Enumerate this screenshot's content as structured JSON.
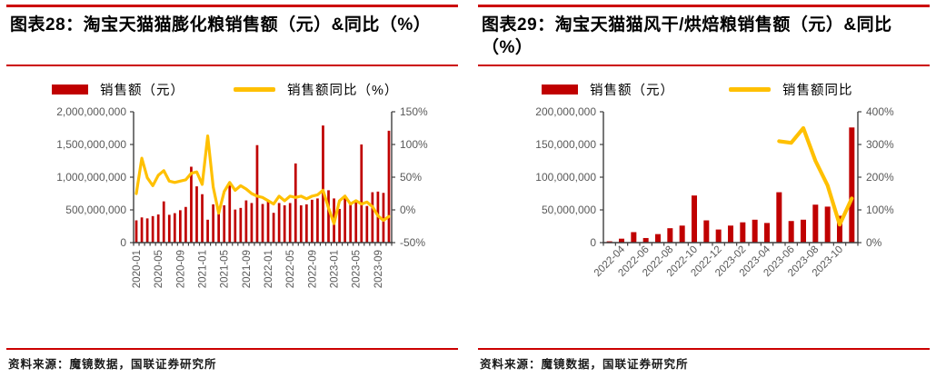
{
  "colors": {
    "bar": "#C00000",
    "line": "#FFC000",
    "rule": "#CC0000",
    "axis": "#3F3F3F",
    "tick_label": "#595959",
    "title": "#000000",
    "source_text": "#1A1A1A"
  },
  "chart_data": [
    {
      "type": "bar+line",
      "title": "图表28：淘宝天猫猫膨化粮销售额（元）&同比（%）",
      "source": "资料来源：魔镜数据，国联证券研究所",
      "legend": [
        {
          "label": "销售额（元）",
          "marker": "bar"
        },
        {
          "label": "销售额同比（%）",
          "marker": "line"
        }
      ],
      "categories": [
        "2020-01",
        "2020-02",
        "2020-03",
        "2020-04",
        "2020-05",
        "2020-06",
        "2020-07",
        "2020-08",
        "2020-09",
        "2020-10",
        "2020-11",
        "2020-12",
        "2021-01",
        "2021-02",
        "2021-03",
        "2021-04",
        "2021-05",
        "2021-06",
        "2021-07",
        "2021-08",
        "2021-09",
        "2021-10",
        "2021-11",
        "2021-12",
        "2022-01",
        "2022-02",
        "2022-03",
        "2022-04",
        "2022-05",
        "2022-06",
        "2022-07",
        "2022-08",
        "2022-09",
        "2022-10",
        "2022-11",
        "2022-12",
        "2023-01",
        "2023-02",
        "2023-03",
        "2023-04",
        "2023-05",
        "2023-06",
        "2023-07",
        "2023-08",
        "2023-09",
        "2023-10",
        "2023-11"
      ],
      "series": [
        {
          "name": "销售额（元）",
          "type": "bar",
          "axis": "y1",
          "values": [
            340000000,
            385000000,
            370000000,
            405000000,
            430000000,
            630000000,
            425000000,
            450000000,
            495000000,
            545000000,
            1160000000,
            860000000,
            740000000,
            350000000,
            585000000,
            550000000,
            570000000,
            930000000,
            505000000,
            530000000,
            645000000,
            605000000,
            1490000000,
            590000000,
            650000000,
            455000000,
            605000000,
            570000000,
            605000000,
            1210000000,
            570000000,
            585000000,
            655000000,
            675000000,
            1790000000,
            800000000,
            675000000,
            515000000,
            725000000,
            605000000,
            650000000,
            1500000000,
            560000000,
            770000000,
            780000000,
            760000000,
            1710000000
          ]
        },
        {
          "name": "销售额同比（%）",
          "type": "line",
          "axis": "y2",
          "values": [
            25,
            79,
            49,
            37,
            53,
            60,
            44,
            42,
            44,
            46,
            56,
            58,
            39,
            113,
            35,
            -5,
            28,
            42,
            30,
            37,
            32,
            25,
            21,
            19,
            14,
            9,
            21,
            14,
            21,
            19,
            21,
            17,
            21,
            23,
            30,
            3,
            -21,
            14,
            21,
            9,
            14,
            9,
            12,
            5,
            -9,
            -16,
            -10
          ]
        }
      ],
      "y1_axis": {
        "min": 0,
        "max": 2000000000,
        "tick_step": 500000000,
        "tick_labels": [
          "2,000,000,000",
          "1,500,000,000",
          "1,000,000,000",
          "500,000,000",
          "0"
        ]
      },
      "y2_axis": {
        "min": -50,
        "max": 150,
        "tick_step": 50,
        "tick_labels": [
          "150%",
          "100%",
          "50%",
          "0%",
          "-50%"
        ]
      },
      "x_axis": {
        "label_every": 4,
        "label_start_index": 0,
        "label_rotation_deg": -90,
        "visible_labels": [
          "2020-01",
          "2020-05",
          "2020-09",
          "2021-01",
          "2021-05",
          "2021-09",
          "2022-01",
          "2022-05",
          "2022-09",
          "2023-01",
          "2023-05",
          "2023-09"
        ]
      }
    },
    {
      "type": "bar+line",
      "title": "图表29：淘宝天猫猫风干/烘焙粮销售额（元）&同比\n（%）",
      "source": "资料来源：魔镜数据，国联证券研究所",
      "legend": [
        {
          "label": "销售额（元）",
          "marker": "bar"
        },
        {
          "label": "销售额同比",
          "marker": "line"
        }
      ],
      "categories": [
        "2022-03",
        "2022-04",
        "2022-05",
        "2022-06",
        "2022-07",
        "2022-08",
        "2022-09",
        "2022-10",
        "2022-11",
        "2022-12",
        "2023-01",
        "2023-02",
        "2023-03",
        "2023-04",
        "2023-05",
        "2023-06",
        "2023-07",
        "2023-08",
        "2023-09",
        "2023-10",
        "2023-11"
      ],
      "series": [
        {
          "name": "销售额（元）",
          "type": "bar",
          "axis": "y1",
          "values": [
            2000000,
            6000000,
            16000000,
            7000000,
            13000000,
            22000000,
            26000000,
            72000000,
            34000000,
            20000000,
            26000000,
            31000000,
            35000000,
            30000000,
            77000000,
            33000000,
            35000000,
            58000000,
            55000000,
            41000000,
            176000000
          ]
        },
        {
          "name": "销售额同比",
          "type": "line",
          "axis": "y2",
          "values": [
            null,
            null,
            null,
            null,
            null,
            null,
            null,
            null,
            null,
            null,
            null,
            null,
            null,
            null,
            310,
            305,
            350,
            250,
            175,
            55,
            135
          ]
        }
      ],
      "y1_axis": {
        "min": 0,
        "max": 200000000,
        "tick_step": 50000000,
        "tick_labels": [
          "200,000,000",
          "150,000,000",
          "100,000,000",
          "50,000,000",
          "0"
        ]
      },
      "y2_axis": {
        "min": 0,
        "max": 400,
        "tick_step": 100,
        "tick_labels": [
          "400%",
          "300%",
          "200%",
          "100%",
          "0%"
        ]
      },
      "x_axis": {
        "label_every": 2,
        "label_start_index": 1,
        "label_rotation_deg": -45,
        "visible_labels": [
          "2022-04",
          "2022-06",
          "2022-08",
          "2022-10",
          "2022-12",
          "2023-02",
          "2023-04",
          "2023-06",
          "2023-08",
          "2023-10"
        ]
      }
    }
  ]
}
